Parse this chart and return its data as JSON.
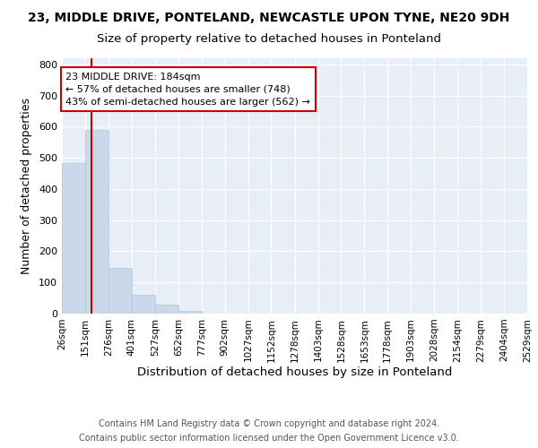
{
  "title": "23, MIDDLE DRIVE, PONTELAND, NEWCASTLE UPON TYNE, NE20 9DH",
  "subtitle": "Size of property relative to detached houses in Ponteland",
  "xlabel": "Distribution of detached houses by size in Ponteland",
  "ylabel": "Number of detached properties",
  "bar_color": "#c9d9ea",
  "bar_edgecolor": "#b0c4d8",
  "vline_x": 184,
  "vline_color": "#cc0000",
  "annotation_text": "23 MIDDLE DRIVE: 184sqm\n← 57% of detached houses are smaller (748)\n43% of semi-detached houses are larger (562) →",
  "annotation_box_color": "#cc0000",
  "bins": [
    26,
    151,
    276,
    401,
    527,
    652,
    777,
    902,
    1027,
    1152,
    1278,
    1403,
    1528,
    1653,
    1778,
    1903,
    2028,
    2154,
    2279,
    2404,
    2529
  ],
  "counts": [
    484,
    590,
    148,
    60,
    30,
    8,
    0,
    0,
    0,
    0,
    0,
    0,
    0,
    0,
    0,
    0,
    0,
    0,
    0,
    0
  ],
  "ylim": [
    0,
    820
  ],
  "yticks": [
    0,
    100,
    200,
    300,
    400,
    500,
    600,
    700,
    800
  ],
  "footer_line1": "Contains HM Land Registry data © Crown copyright and database right 2024.",
  "footer_line2": "Contains public sector information licensed under the Open Government Licence v3.0.",
  "plot_bg_color": "#e8eef5",
  "title_fontsize": 10,
  "subtitle_fontsize": 9.5,
  "axis_label_fontsize": 9,
  "tick_fontsize": 7.5,
  "annotation_fontsize": 8,
  "footer_fontsize": 7
}
